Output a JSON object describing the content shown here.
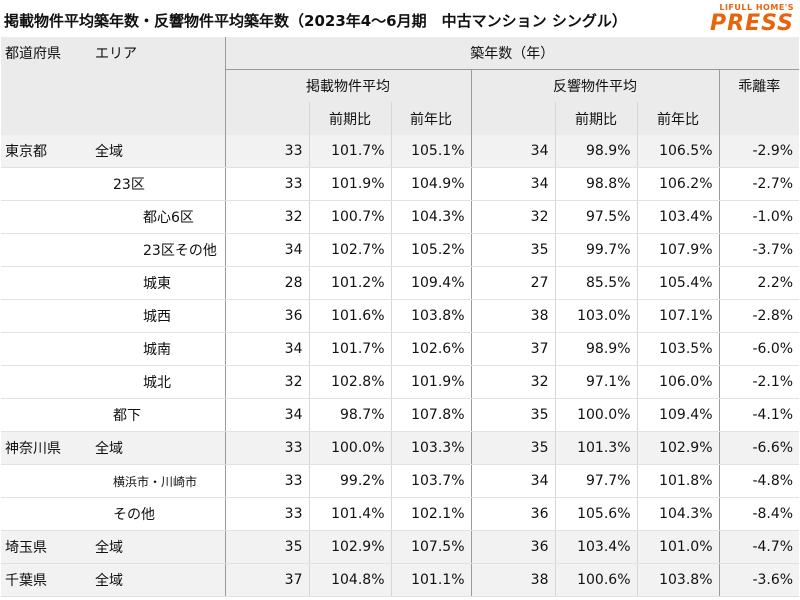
{
  "title": "掲載物件平均築年数・反響物件平均築年数（2023年4～6月期　中古マンション シングル）",
  "logo": {
    "line1": "LIFULL HOME'S",
    "line2": "PRESS"
  },
  "headers": {
    "pref": "都道府県",
    "area": "エリア",
    "age": "築年数（年）",
    "listed": "掲載物件平均",
    "response": "反響物件平均",
    "gap": "乖離率",
    "qoq": "前期比",
    "yoy": "前年比"
  },
  "rows": [
    {
      "pref": "東京都",
      "area": "全域",
      "indent": 1,
      "l": "33",
      "lq": "101.7%",
      "ly": "105.1%",
      "r": "34",
      "rq": "98.9%",
      "ry": "106.5%",
      "g": "-2.9%"
    },
    {
      "pref": "",
      "area": "23区",
      "indent": 2,
      "l": "33",
      "lq": "101.9%",
      "ly": "104.9%",
      "r": "34",
      "rq": "98.8%",
      "ry": "106.2%",
      "g": "-2.7%"
    },
    {
      "pref": "",
      "area": "都心6区",
      "indent": 3,
      "l": "32",
      "lq": "100.7%",
      "ly": "104.3%",
      "r": "32",
      "rq": "97.5%",
      "ry": "103.4%",
      "g": "-1.0%"
    },
    {
      "pref": "",
      "area": "23区その他",
      "indent": 3,
      "l": "34",
      "lq": "102.7%",
      "ly": "105.2%",
      "r": "35",
      "rq": "99.7%",
      "ry": "107.9%",
      "g": "-3.7%"
    },
    {
      "pref": "",
      "area": "城東",
      "indent": 3,
      "l": "28",
      "lq": "101.2%",
      "ly": "109.4%",
      "r": "27",
      "rq": "85.5%",
      "ry": "105.4%",
      "g": "2.2%"
    },
    {
      "pref": "",
      "area": "城西",
      "indent": 3,
      "l": "36",
      "lq": "101.6%",
      "ly": "103.8%",
      "r": "38",
      "rq": "103.0%",
      "ry": "107.1%",
      "g": "-2.8%"
    },
    {
      "pref": "",
      "area": "城南",
      "indent": 3,
      "l": "34",
      "lq": "101.7%",
      "ly": "102.6%",
      "r": "37",
      "rq": "98.9%",
      "ry": "103.5%",
      "g": "-6.0%"
    },
    {
      "pref": "",
      "area": "城北",
      "indent": 3,
      "l": "32",
      "lq": "102.8%",
      "ly": "101.9%",
      "r": "32",
      "rq": "97.1%",
      "ry": "106.0%",
      "g": "-2.1%"
    },
    {
      "pref": "",
      "area": "都下",
      "indent": 2,
      "l": "34",
      "lq": "98.7%",
      "ly": "107.8%",
      "r": "35",
      "rq": "100.0%",
      "ry": "109.4%",
      "g": "-4.1%"
    },
    {
      "pref": "神奈川県",
      "area": "全域",
      "indent": 1,
      "l": "33",
      "lq": "100.0%",
      "ly": "103.3%",
      "r": "35",
      "rq": "101.3%",
      "ry": "102.9%",
      "g": "-6.6%"
    },
    {
      "pref": "",
      "area": "横浜市・川崎市",
      "indent": 2,
      "small": true,
      "l": "33",
      "lq": "99.2%",
      "ly": "103.7%",
      "r": "34",
      "rq": "97.7%",
      "ry": "101.8%",
      "g": "-4.8%"
    },
    {
      "pref": "",
      "area": "その他",
      "indent": 2,
      "l": "33",
      "lq": "101.4%",
      "ly": "102.1%",
      "r": "36",
      "rq": "105.6%",
      "ry": "104.3%",
      "g": "-8.4%"
    },
    {
      "pref": "埼玉県",
      "area": "全域",
      "indent": 1,
      "l": "35",
      "lq": "102.9%",
      "ly": "107.5%",
      "r": "36",
      "rq": "103.4%",
      "ry": "101.0%",
      "g": "-4.7%"
    },
    {
      "pref": "千葉県",
      "area": "全域",
      "indent": 1,
      "l": "37",
      "lq": "104.8%",
      "ly": "101.1%",
      "r": "38",
      "rq": "100.6%",
      "ry": "103.8%",
      "g": "-3.6%"
    }
  ]
}
